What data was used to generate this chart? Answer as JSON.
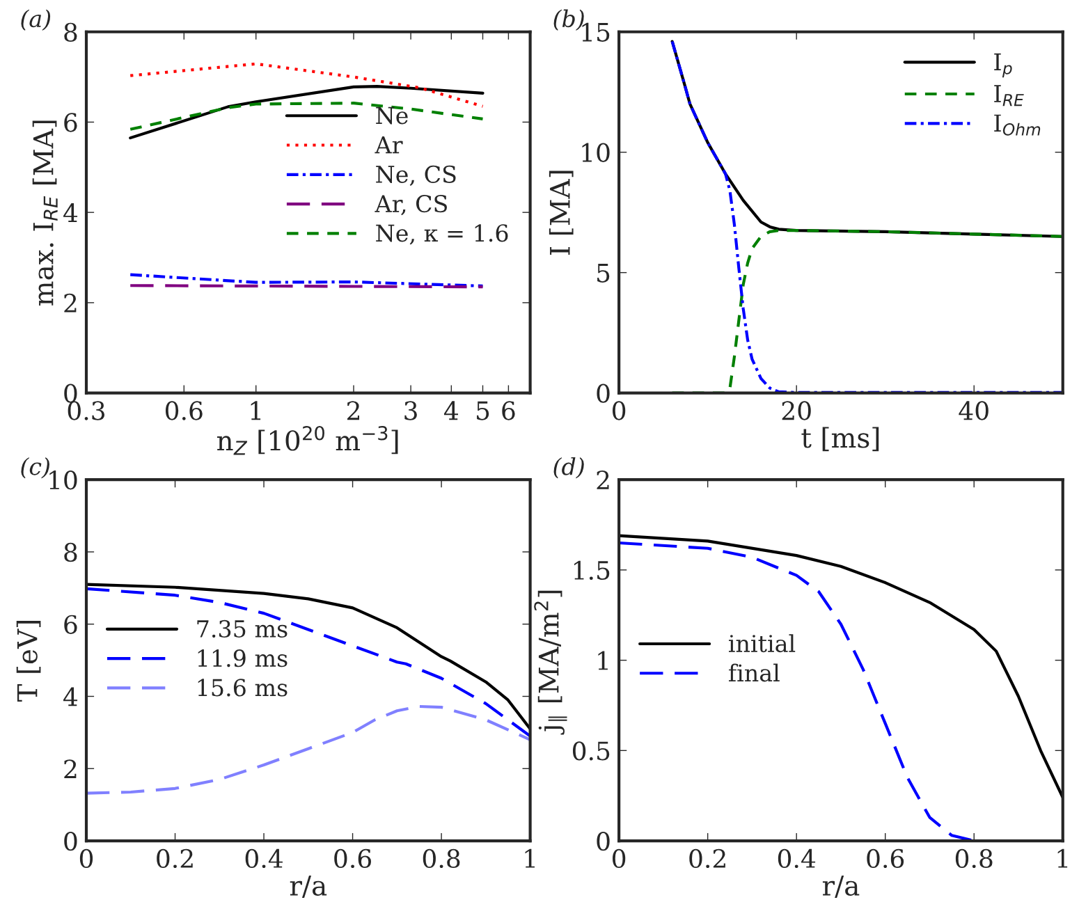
{
  "chart_data": [
    {
      "type": "line",
      "title": "(a)",
      "xlabel": "n$_{Z}$ [10$^{20}$ m$^{−3}$]",
      "ylabel": "max. I$_{RE}$ [MA]",
      "log": "x",
      "xlim": [
        0.3,
        7
      ],
      "xticks": [
        0.3,
        0.6,
        1,
        2,
        3,
        4,
        5,
        6
      ],
      "ylim": [
        0,
        8
      ],
      "yticks": [
        0,
        2,
        4,
        6,
        8
      ],
      "legend": "right",
      "grid": false,
      "series": [
        {
          "name": "Ne",
          "color": "#000000",
          "line_style": "solid",
          "x": [
            0.41,
            0.82,
            1,
            2,
            2.36,
            3,
            5
          ],
          "values": [
            5.65,
            6.34,
            6.45,
            6.78,
            6.79,
            6.75,
            6.64
          ]
        },
        {
          "name": "Ar",
          "color": "#ff0000",
          "line_style": "dotted",
          "x": [
            0.41,
            1,
            2,
            3.2,
            5
          ],
          "values": [
            7.03,
            7.29,
            7.0,
            6.76,
            6.35
          ]
        },
        {
          "name": "Ne, CS",
          "color": "#0000ff",
          "line_style": "dashdot",
          "x": [
            0.41,
            1,
            2,
            5
          ],
          "values": [
            2.62,
            2.45,
            2.46,
            2.37
          ]
        },
        {
          "name": "Ar, CS",
          "color": "#800080",
          "line_style": "longdash",
          "x": [
            0.41,
            5
          ],
          "values": [
            2.38,
            2.35
          ]
        },
        {
          "name": "Ne, κ = 1.6",
          "color": "#008000",
          "line_style": "dashed",
          "x": [
            0.41,
            0.82,
            1,
            2,
            3,
            5
          ],
          "values": [
            5.84,
            6.32,
            6.4,
            6.42,
            6.29,
            6.07
          ]
        }
      ]
    },
    {
      "type": "line",
      "title": "(b)",
      "xlabel": "t [ms]",
      "ylabel": "I [MA]",
      "xlim": [
        0,
        50
      ],
      "xticks": [
        0,
        20,
        40
      ],
      "ylim": [
        0,
        15
      ],
      "yticks": [
        0,
        5,
        10,
        15
      ],
      "legend": "top right",
      "grid": false,
      "series": [
        {
          "name": "I$_{p}$",
          "color": "#000000",
          "line_style": "solid",
          "x": [
            6,
            7.4,
            8,
            10,
            12,
            14,
            16,
            17,
            18,
            20,
            30,
            40,
            50
          ],
          "values": [
            14.6,
            12.8,
            12.0,
            10.4,
            9.1,
            8.0,
            7.1,
            6.9,
            6.8,
            6.75,
            6.7,
            6.6,
            6.5
          ]
        },
        {
          "name": "I$_{RE}$",
          "color": "#008000",
          "line_style": "dashed",
          "x": [
            6,
            12,
            12.5,
            13,
            13.5,
            14,
            14.5,
            15,
            16,
            17,
            18,
            20,
            30,
            40,
            50
          ],
          "values": [
            0,
            0,
            0.2,
            1.5,
            3,
            4.5,
            5.4,
            6.0,
            6.5,
            6.7,
            6.75,
            6.75,
            6.7,
            6.6,
            6.5
          ]
        },
        {
          "name": "I$_{Ohm}$",
          "color": "#0000ff",
          "line_style": "dashdot",
          "x": [
            6,
            7.4,
            8,
            10,
            12,
            12.5,
            13,
            13.5,
            14,
            14.5,
            15,
            16,
            17,
            18,
            20,
            50
          ],
          "values": [
            14.6,
            12.8,
            12.0,
            10.4,
            9.1,
            8.4,
            7,
            5.2,
            3.5,
            2.2,
            1.4,
            0.6,
            0.2,
            0.05,
            0.02,
            0.02
          ]
        }
      ]
    },
    {
      "type": "line",
      "title": "(c)",
      "xlabel": "r/a",
      "ylabel": "T [eV]",
      "xlim": [
        0,
        1
      ],
      "xticks": [
        0,
        0.2,
        0.4,
        0.6,
        0.8,
        1
      ],
      "ylim": [
        0,
        10
      ],
      "yticks": [
        0,
        2,
        4,
        6,
        8,
        10
      ],
      "legend": "left",
      "grid": false,
      "series": [
        {
          "name": "7.35 ms",
          "color": "#000000",
          "line_style": "solid",
          "x": [
            0,
            0.2,
            0.4,
            0.5,
            0.6,
            0.7,
            0.8,
            0.82,
            0.9,
            0.95,
            1
          ],
          "values": [
            7.1,
            7.02,
            6.85,
            6.7,
            6.45,
            5.9,
            5.1,
            4.98,
            4.4,
            3.9,
            3.1
          ]
        },
        {
          "name": "11.9 ms",
          "color": "#0000ff",
          "line_style": "longdash",
          "x": [
            0,
            0.2,
            0.3,
            0.4,
            0.5,
            0.6,
            0.7,
            0.72,
            0.8,
            0.9,
            1
          ],
          "values": [
            6.98,
            6.8,
            6.6,
            6.3,
            5.85,
            5.4,
            4.95,
            4.9,
            4.5,
            3.8,
            2.9
          ]
        },
        {
          "name": "15.6 ms",
          "color": "#8080ff",
          "line_style": "longdash",
          "x": [
            0,
            0.1,
            0.2,
            0.3,
            0.4,
            0.5,
            0.6,
            0.65,
            0.7,
            0.75,
            0.8,
            0.9,
            1
          ],
          "values": [
            1.32,
            1.35,
            1.45,
            1.7,
            2.1,
            2.55,
            3.0,
            3.35,
            3.6,
            3.72,
            3.7,
            3.35,
            2.8
          ]
        }
      ]
    },
    {
      "type": "line",
      "title": "(d)",
      "xlabel": "r/a",
      "ylabel": "j$_{∥}$ [MA/m$^{2}$]",
      "xlim": [
        0,
        1
      ],
      "xticks": [
        0,
        0.2,
        0.4,
        0.6,
        0.8,
        1
      ],
      "ylim": [
        0,
        2
      ],
      "yticks": [
        0,
        0.5,
        1,
        1.5,
        2
      ],
      "legend": "left",
      "grid": false,
      "series": [
        {
          "name": "initial",
          "color": "#000000",
          "line_style": "solid",
          "x": [
            0,
            0.2,
            0.4,
            0.5,
            0.6,
            0.7,
            0.8,
            0.85,
            0.9,
            0.95,
            1
          ],
          "values": [
            1.69,
            1.66,
            1.58,
            1.52,
            1.43,
            1.32,
            1.17,
            1.05,
            0.8,
            0.5,
            0.24
          ]
        },
        {
          "name": "final",
          "color": "#0000ff",
          "line_style": "longdash",
          "x": [
            0,
            0.2,
            0.3,
            0.4,
            0.45,
            0.5,
            0.55,
            0.6,
            0.65,
            0.7,
            0.75,
            0.8,
            1
          ],
          "values": [
            1.65,
            1.62,
            1.57,
            1.47,
            1.38,
            1.2,
            0.95,
            0.65,
            0.35,
            0.13,
            0.03,
            0.0,
            0.0
          ]
        }
      ]
    }
  ]
}
